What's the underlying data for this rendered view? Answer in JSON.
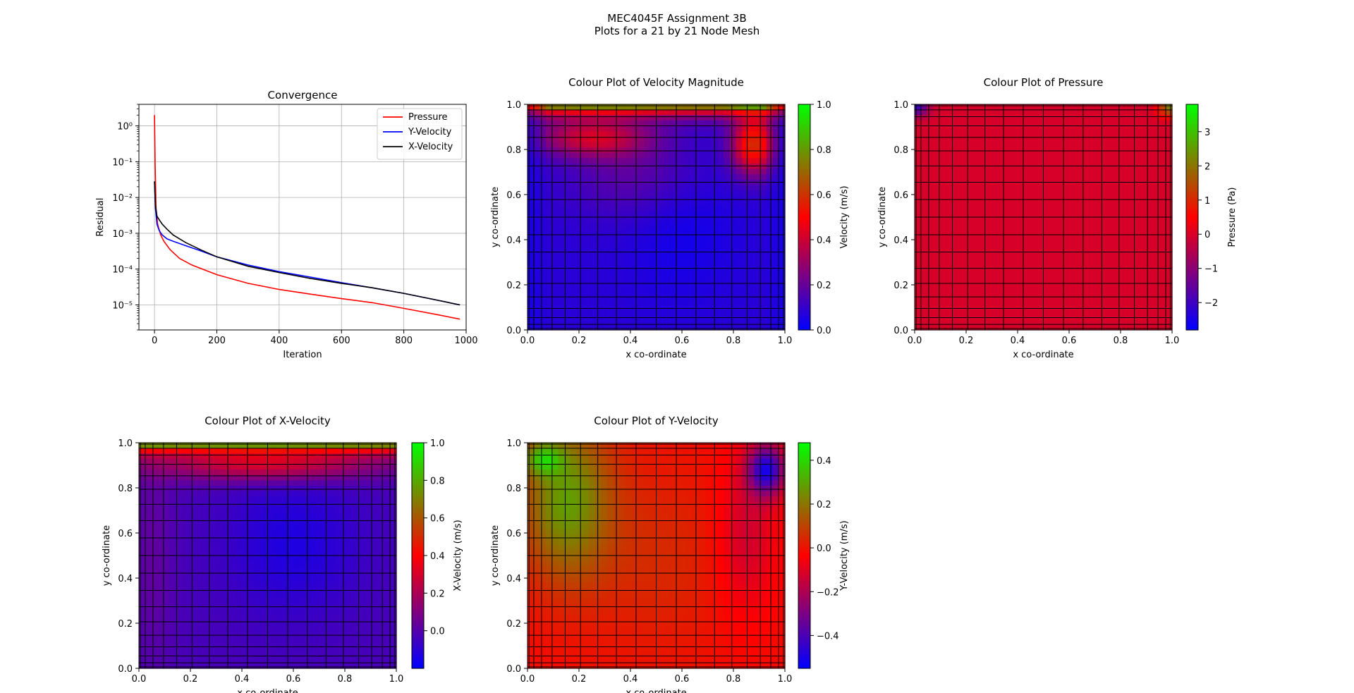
{
  "suptitle_line1": "MEC4045F Assignment 3B",
  "suptitle_line2": "Plots for a 21 by 21 Node Mesh",
  "chart_data": [
    {
      "type": "line",
      "title": "Convergence",
      "xlabel": "Iteration",
      "ylabel": "Residual",
      "xlim": [
        -50,
        1000
      ],
      "ylim": [
        2e-06,
        4
      ],
      "yscale": "log",
      "grid": true,
      "legend_placement": "top-right",
      "xticks": [
        "0",
        "200",
        "400",
        "600",
        "800",
        "1000"
      ],
      "yticks": [
        "10⁰",
        "10⁻¹",
        "10⁻²",
        "10⁻³",
        "10⁻⁴",
        "10⁻⁵"
      ],
      "series": [
        {
          "name": "Pressure",
          "color": "#ff0000",
          "x": [
            0,
            2,
            5,
            10,
            20,
            30,
            50,
            80,
            120,
            200,
            300,
            400,
            500,
            600,
            700,
            800,
            900,
            980
          ],
          "y": [
            2.0,
            0.08,
            0.005,
            0.0018,
            0.0009,
            0.0006,
            0.00035,
            0.0002,
            0.00013,
            7e-05,
            4e-05,
            2.7e-05,
            2e-05,
            1.5e-05,
            1.15e-05,
            8e-06,
            5.5e-06,
            4e-06
          ]
        },
        {
          "name": "Y-Velocity",
          "color": "#0000ff",
          "x": [
            0,
            3,
            8,
            15,
            25,
            40,
            60,
            100,
            150,
            200,
            300,
            400,
            500,
            600,
            700,
            800,
            900,
            980
          ],
          "y": [
            0.028,
            0.005,
            0.0018,
            0.0012,
            0.0009,
            0.0007,
            0.0006,
            0.00045,
            0.00032,
            0.00022,
            0.00013,
            8.5e-05,
            6e-05,
            4.2e-05,
            3e-05,
            2.1e-05,
            1.4e-05,
            1e-05
          ]
        },
        {
          "name": "X-Velocity",
          "color": "#000000",
          "x": [
            0,
            3,
            8,
            15,
            25,
            40,
            60,
            100,
            150,
            200,
            300,
            400,
            500,
            600,
            700,
            800,
            900,
            980
          ],
          "y": [
            0.028,
            0.006,
            0.003,
            0.0024,
            0.0018,
            0.0013,
            0.0009,
            0.00055,
            0.00034,
            0.00022,
            0.00012,
            8e-05,
            5.5e-05,
            4e-05,
            3e-05,
            2.1e-05,
            1.4e-05,
            1e-05
          ]
        }
      ]
    },
    {
      "type": "heatmap",
      "title": "Colour Plot of Velocity Magnitude",
      "xlabel": "x co-ordinate",
      "ylabel": "y co-ordinate",
      "xlim": [
        0,
        1
      ],
      "ylim": [
        0,
        1
      ],
      "xticks": [
        "0.0",
        "0.2",
        "0.4",
        "0.6",
        "0.8",
        "1.0"
      ],
      "yticks": [
        "0.0",
        "0.2",
        "0.4",
        "0.6",
        "0.8",
        "1.0"
      ],
      "colorbar_label": "Velocity (m/s)",
      "colorbar_range": [
        0.0,
        1.0
      ],
      "colorbar_ticks": [
        "0.0",
        "0.2",
        "0.4",
        "0.6",
        "0.8",
        "1.0"
      ],
      "colorbar_tick_values": [
        0.0,
        0.2,
        0.4,
        0.6,
        0.8,
        1.0
      ],
      "colormap": [
        "#0000ff",
        "#ff0000",
        "#00ff00"
      ],
      "mesh": 21
    },
    {
      "type": "heatmap",
      "title": "Colour Plot of Pressure",
      "xlabel": "x co-ordinate",
      "ylabel": "y co-ordinate",
      "xlim": [
        0,
        1
      ],
      "ylim": [
        0,
        1
      ],
      "xticks": [
        "0.0",
        "0.2",
        "0.4",
        "0.6",
        "0.8",
        "1.0"
      ],
      "yticks": [
        "0.0",
        "0.2",
        "0.4",
        "0.6",
        "0.8",
        "1.0"
      ],
      "colorbar_label": "Pressure (Pa)",
      "colorbar_range": [
        -2.8,
        3.8
      ],
      "colorbar_ticks": [
        "−2",
        "−1",
        "0",
        "1",
        "2",
        "3"
      ],
      "colorbar_tick_values": [
        -2,
        -1,
        0,
        1,
        2,
        3
      ],
      "colormap": [
        "#0000ff",
        "#ff0000",
        "#00ff00"
      ],
      "mesh": 21
    },
    {
      "type": "heatmap",
      "title": "Colour Plot of X-Velocity",
      "xlabel": "x co-ordinate",
      "ylabel": "y co-ordinate",
      "xlim": [
        0,
        1
      ],
      "ylim": [
        0,
        1
      ],
      "xticks": [
        "0.0",
        "0.2",
        "0.4",
        "0.6",
        "0.8",
        "1.0"
      ],
      "yticks": [
        "0.0",
        "0.2",
        "0.4",
        "0.6",
        "0.8",
        "1.0"
      ],
      "colorbar_label": "X-Velocity (m/s)",
      "colorbar_range": [
        -0.2,
        1.0
      ],
      "colorbar_ticks": [
        "0.0",
        "0.2",
        "0.4",
        "0.6",
        "0.8",
        "1.0"
      ],
      "colorbar_tick_values": [
        0.0,
        0.2,
        0.4,
        0.6,
        0.8,
        1.0
      ],
      "colormap": [
        "#0000ff",
        "#ff0000",
        "#00ff00"
      ],
      "mesh": 21
    },
    {
      "type": "heatmap",
      "title": "Colour Plot of Y-Velocity",
      "xlabel": "x co-ordinate",
      "ylabel": "y co-ordinate",
      "xlim": [
        0,
        1
      ],
      "ylim": [
        0,
        1
      ],
      "xticks": [
        "0.0",
        "0.2",
        "0.4",
        "0.6",
        "0.8",
        "1.0"
      ],
      "yticks": [
        "0.0",
        "0.2",
        "0.4",
        "0.6",
        "0.8",
        "1.0"
      ],
      "colorbar_label": "Y-Velocity (m/s)",
      "colorbar_range": [
        -0.55,
        0.48
      ],
      "colorbar_ticks": [
        "−0.4",
        "−0.2",
        "0.0",
        "0.2",
        "0.4"
      ],
      "colorbar_tick_values": [
        -0.4,
        -0.2,
        0.0,
        0.2,
        0.4
      ],
      "colormap": [
        "#0000ff",
        "#ff0000",
        "#00ff00"
      ],
      "mesh": 21
    }
  ]
}
